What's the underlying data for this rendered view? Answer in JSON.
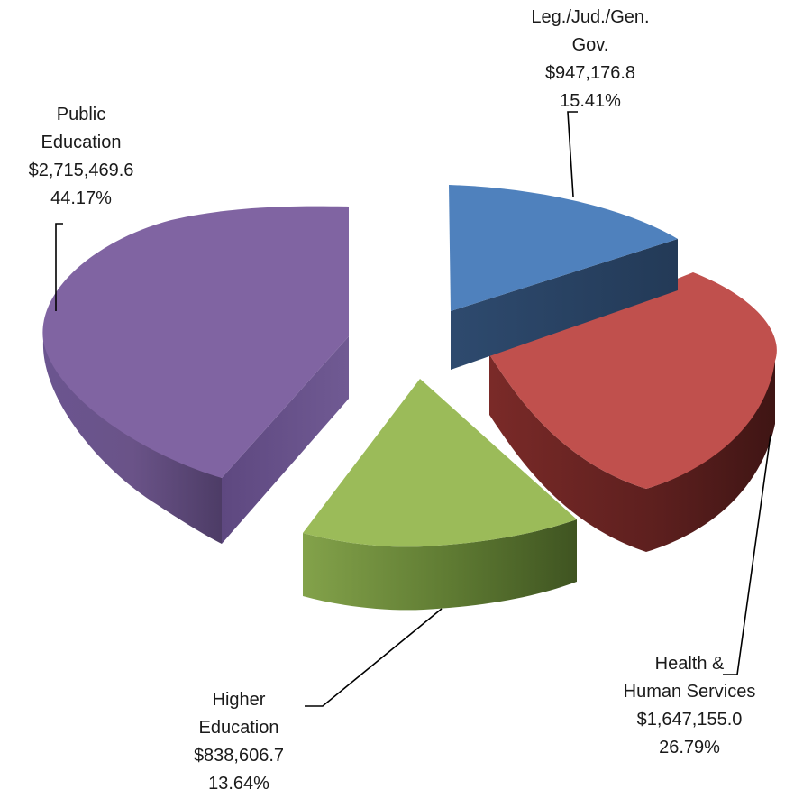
{
  "chart_data": {
    "type": "pie",
    "title": "",
    "style": "3d exploded pie",
    "slices": [
      {
        "name_lines": [
          "Leg./Jud./Gen.",
          "Gov."
        ],
        "value": 947176.8,
        "value_text": "$947,176.8",
        "percent_text": "15.41%",
        "color": "#4f81bd"
      },
      {
        "name_lines": [
          "Health &",
          "Human Services"
        ],
        "value": 1647155.0,
        "value_text": "$1,647,155.0",
        "percent_text": "26.79%",
        "color": "#c0504d"
      },
      {
        "name_lines": [
          "Higher",
          "Education"
        ],
        "value": 838606.7,
        "value_text": "$838,606.7",
        "percent_text": "13.64%",
        "color": "#9bbb59"
      },
      {
        "name_lines": [
          "Public",
          "Education"
        ],
        "value": 2715469.6,
        "value_text": "$2,715,469.6",
        "percent_text": "44.17%",
        "color": "#8064a2"
      }
    ]
  }
}
